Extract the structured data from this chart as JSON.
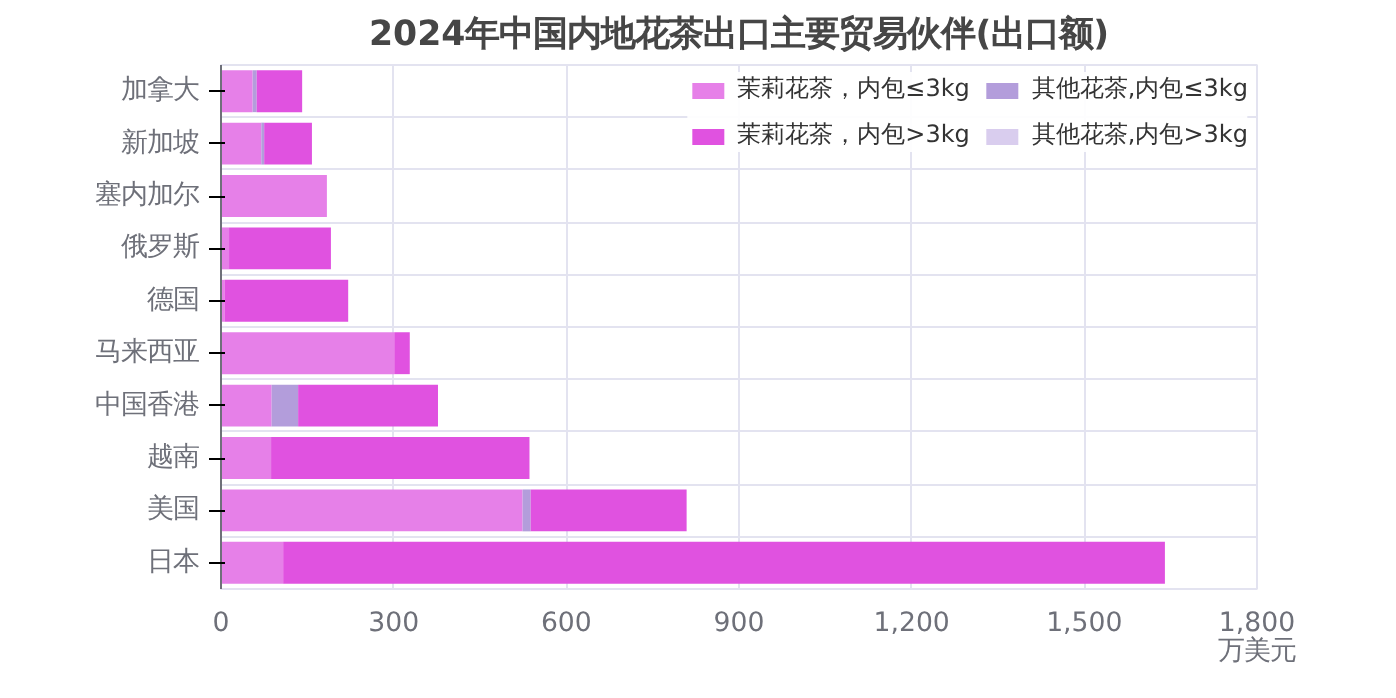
{
  "chart_data": {
    "type": "bar",
    "orientation": "horizontal",
    "stacked": true,
    "title": "2024年中国内地花茶出口主要贸易伙伴(出口额)",
    "xlabel": "万美元",
    "categories": [
      "加拿大",
      "新加坡",
      "塞内加尔",
      "俄罗斯",
      "德国",
      "马来西亚",
      "中国香港",
      "越南",
      "美国",
      "日本"
    ],
    "series": [
      {
        "name": "茉莉花茶，内包≤3kg",
        "color": "#e680e8",
        "values": [
          55,
          70,
          184,
          14,
          6,
          301,
          88,
          87,
          524,
          108
        ]
      },
      {
        "name": "其他花茶,内包≤3kg",
        "color": "#b39ddb",
        "values": [
          7,
          5,
          0,
          0,
          0,
          0,
          46,
          0,
          14,
          0
        ]
      },
      {
        "name": "茉莉花茶，内包>3kg",
        "color": "#e052e0",
        "values": [
          79,
          83,
          0,
          177,
          215,
          27,
          243,
          449,
          271,
          1532
        ]
      },
      {
        "name": "其他花茶,内包>3kg",
        "color": "#d9cdee",
        "values": [
          0,
          0,
          0,
          0,
          0,
          0,
          0,
          0,
          0,
          0
        ]
      }
    ],
    "xlim": [
      0,
      1800
    ],
    "xticks": [
      0,
      {
        "value": 300,
        "label": "300"
      },
      {
        "value": 600,
        "label": "600"
      },
      {
        "value": 900,
        "label": "900"
      },
      {
        "value": 1200,
        "label": "1,200"
      },
      {
        "value": 1500,
        "label": "1,500"
      },
      {
        "value": 1800,
        "label": "1,800"
      }
    ],
    "grid": true,
    "legend": "top right"
  }
}
